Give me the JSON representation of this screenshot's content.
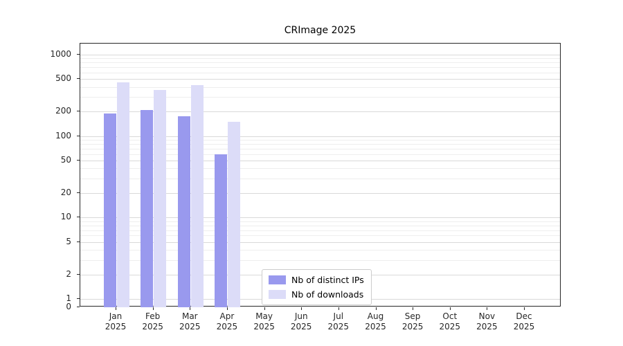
{
  "title": "CRImage 2025",
  "legend": {
    "items": [
      {
        "label": "Nb of distinct IPs",
        "color": "#9999ee"
      },
      {
        "label": "Nb of downloads",
        "color": "#dcdcf8"
      }
    ]
  },
  "chart_data": {
    "type": "bar",
    "title": "CRImage 2025",
    "categories": [
      "Jan",
      "Feb",
      "Mar",
      "Apr",
      "May",
      "Jun",
      "Jul",
      "Aug",
      "Sep",
      "Oct",
      "Nov",
      "Dec"
    ],
    "category_year": "2025",
    "series": [
      {
        "name": "Nb of distinct IPs",
        "color": "#9999ee",
        "values": [
          190,
          210,
          175,
          60,
          0,
          0,
          0,
          0,
          0,
          0,
          0,
          0
        ]
      },
      {
        "name": "Nb of downloads",
        "color": "#dcdcf8",
        "values": [
          460,
          370,
          420,
          150,
          0,
          0,
          0,
          0,
          0,
          0,
          0,
          0
        ]
      }
    ],
    "xlabel": "",
    "ylabel": "",
    "yscale": "log",
    "yticks": [
      0,
      1,
      2,
      5,
      10,
      20,
      50,
      100,
      200,
      500,
      1000
    ],
    "ylim": [
      0,
      1365
    ],
    "grid": true,
    "legend_position": "lower center"
  }
}
